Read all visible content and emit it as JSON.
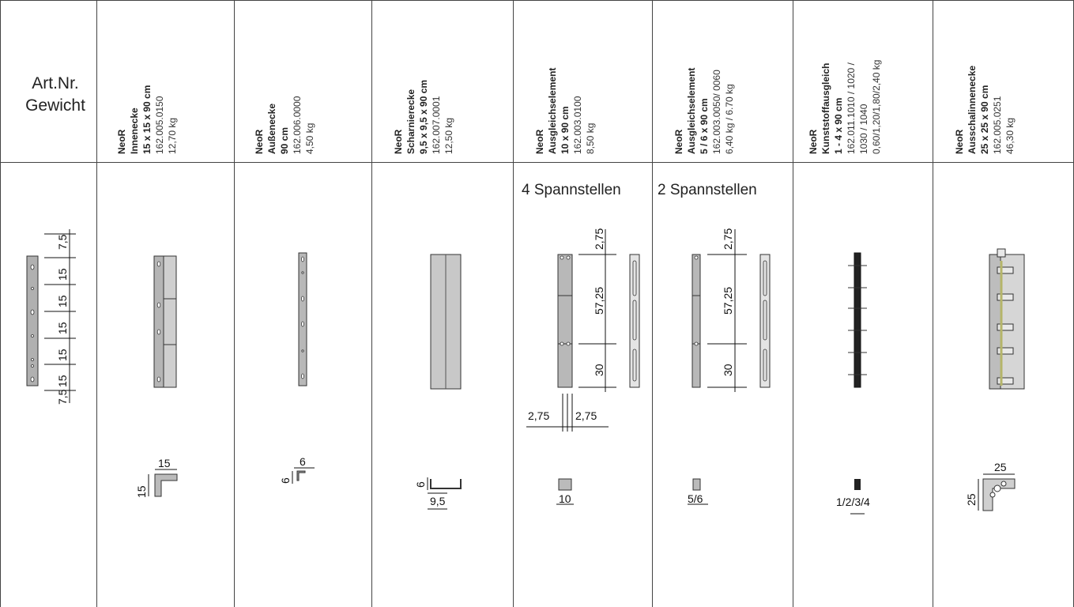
{
  "first_col": {
    "line1": "Art.Nr.",
    "line2": "Gewicht"
  },
  "products": [
    {
      "lines": [
        "NeoR",
        "Innenecke",
        "15 x 15 x 90 cm",
        "162.005.0150",
        "12,70 kg"
      ],
      "bold": 3
    },
    {
      "lines": [
        "NeoR",
        "Außenecke",
        "90 cm",
        "162.006.0000",
        "4,50 kg"
      ],
      "bold": 3
    },
    {
      "lines": [
        "NeoR",
        "Scharnierecke",
        "9,5 x 9,5 x 90 cm",
        "162.007.0001",
        "12,50 kg"
      ],
      "bold": 3
    },
    {
      "lines": [
        "NeoR",
        "Ausgleichselement",
        "10 x 90 cm",
        "162.003.0100",
        "8,50 kg"
      ],
      "bold": 3
    },
    {
      "lines": [
        "NeoR",
        "Ausgleichselement",
        "5 / 6 x 90 cm",
        "162.003.0050/ 0060",
        "6,40 kg / 6.70 kg"
      ],
      "bold": 3
    },
    {
      "lines": [
        "NeoR",
        "Kunststoffausgleich",
        "1 - 4 x 90 cm",
        "162.011.1010 / 1020 /",
        "1030 / 1040",
        "0,60/1,20/1,80/2,40 kg"
      ],
      "bold": 3
    },
    {
      "lines": [
        "NeoR",
        "Ausschalinnenecke",
        "25 x 25 x 90 cm",
        "162.005.0251",
        "46,30 kg"
      ],
      "bold": 3
    }
  ],
  "spann": {
    "four": "4 Spannstellen",
    "two": "2 Spannstellen"
  },
  "dims": {
    "first": [
      "7,5",
      "15",
      "15",
      "15",
      "15",
      "15",
      "7,5"
    ],
    "innen": "15",
    "aussen": "6",
    "scharnier_h": "6",
    "scharnier_w": "9,5",
    "ausgl_top": "2,75",
    "ausgl_mid": "57,25",
    "ausgl_bot": "30",
    "ausgl_left": "2,75",
    "ausgl_right": "2,75",
    "ausgl10": "10",
    "ausgl56": "5/6",
    "kunst": "1/2/3/4",
    "aussch": "25"
  }
}
